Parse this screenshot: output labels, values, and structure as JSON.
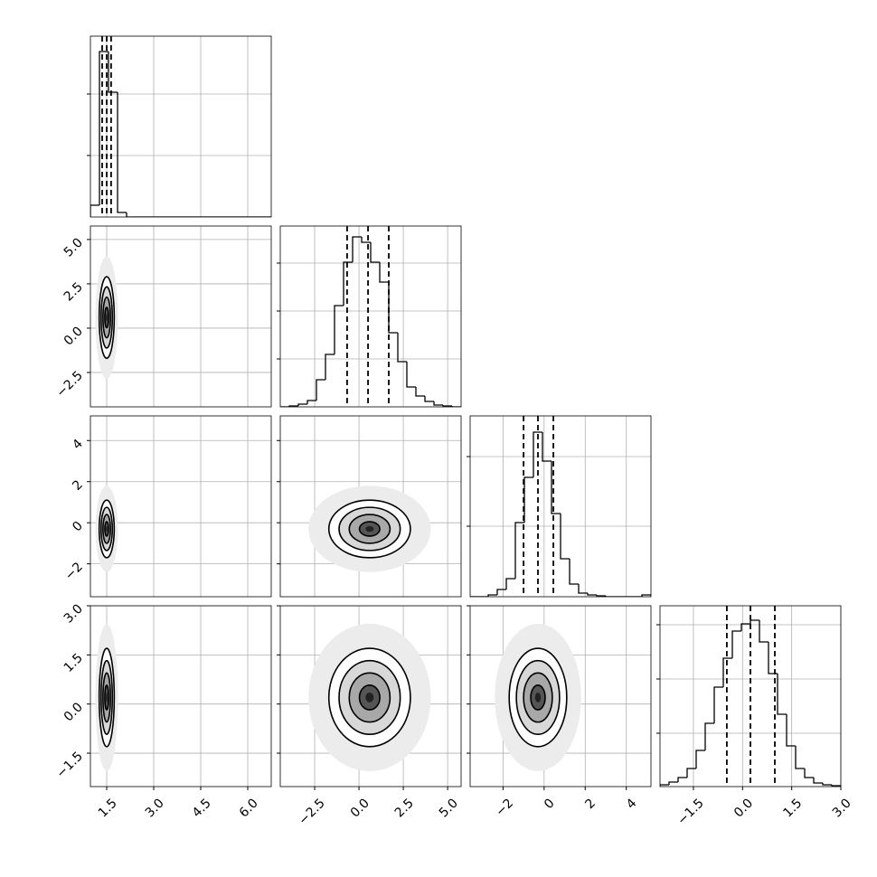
{
  "chart_data": {
    "type": "corner",
    "grid": true,
    "hist_ylim": [
      0,
      200
    ],
    "parameters": [
      {
        "lim": [
          0.98,
          6.75
        ],
        "ticks": [
          1.5,
          {
            "value": 3,
            "label": "3.0"
          },
          4.5,
          {
            "value": 6,
            "label": "6.0"
          }
        ],
        "bins": [
          0.98,
          1.269,
          1.557,
          1.846,
          2.134,
          2.423,
          2.711,
          3.0,
          3.288,
          3.577,
          3.865,
          4.154,
          4.442,
          4.731,
          5.019,
          5.308,
          5.596,
          5.885,
          6.173,
          6.462,
          6.75
        ],
        "counts": [
          13,
          183,
          138,
          5,
          0,
          0,
          0,
          0,
          0,
          0,
          0,
          0,
          0,
          0,
          0,
          0,
          0,
          0,
          0,
          0
        ],
        "hist_yticks": [
          68,
          136
        ],
        "quantiles": [
          1.355,
          1.5,
          1.64
        ],
        "mean": 1.5,
        "sigma": 0.12
      },
      {
        "lim": [
          -4.44,
          5.76
        ],
        "ticks": [
          {
            "value": -2.5,
            "label": "−2.5"
          },
          {
            "value": 0,
            "label": "0.0"
          },
          2.5,
          {
            "value": 5,
            "label": "5.0"
          }
        ],
        "bins": [
          -4.44,
          -3.93,
          -3.42,
          -2.91,
          -2.4,
          -1.89,
          -1.38,
          -0.87,
          -0.36,
          0.15,
          0.66,
          1.17,
          1.68,
          2.19,
          2.7,
          3.21,
          3.72,
          4.23,
          4.74,
          5.25,
          5.76
        ],
        "counts": [
          0,
          1,
          3,
          7,
          30,
          58,
          112,
          160,
          188,
          182,
          160,
          138,
          82,
          50,
          22,
          12,
          6,
          2,
          1,
          0
        ],
        "hist_yticks": [
          53,
          106,
          159
        ],
        "quantiles": [
          -0.67,
          0.51,
          1.68
        ],
        "mean": 0.6,
        "sigma": 1.15
      },
      {
        "lim": [
          -3.6,
          5.2
        ],
        "ticks": [
          {
            "value": -2,
            "label": "−2"
          },
          0,
          2,
          4
        ],
        "bins": [
          -3.6,
          -3.16,
          -2.72,
          -2.28,
          -1.84,
          -1.4,
          -0.96,
          -0.52,
          -0.08,
          0.36,
          0.8,
          1.24,
          1.68,
          2.12,
          2.56,
          3.0,
          3.44,
          3.88,
          4.32,
          4.76,
          5.2
        ],
        "counts": [
          0,
          0,
          2,
          8,
          20,
          82,
          132,
          182,
          150,
          92,
          42,
          14,
          4,
          2,
          1,
          0,
          0,
          0,
          0,
          2
        ],
        "hist_yticks": [
          78,
          155
        ],
        "quantiles": [
          -1.0,
          -0.3,
          0.45
        ],
        "mean": -0.3,
        "sigma": 0.7
      },
      {
        "lim": [
          -2.52,
          3.0
        ],
        "ticks": [
          {
            "value": -1.5,
            "label": "−1.5"
          },
          {
            "value": 0,
            "label": "0.0"
          },
          1.5,
          {
            "value": 3,
            "label": "3.0"
          }
        ],
        "bins": [
          -2.52,
          -2.244,
          -1.968,
          -1.692,
          -1.416,
          -1.14,
          -0.864,
          -0.588,
          -0.312,
          -0.036,
          0.24,
          0.516,
          0.792,
          1.068,
          1.344,
          1.62,
          1.896,
          2.172,
          2.448,
          2.724,
          3.0
        ],
        "counts": [
          2,
          5,
          10,
          20,
          40,
          70,
          110,
          142,
          172,
          180,
          184,
          160,
          125,
          80,
          45,
          20,
          10,
          4,
          2,
          1
        ],
        "hist_yticks": [
          59,
          119,
          179
        ],
        "quantiles": [
          -0.48,
          0.24,
          0.985
        ],
        "mean": 0.2,
        "sigma": 0.75
      }
    ]
  }
}
